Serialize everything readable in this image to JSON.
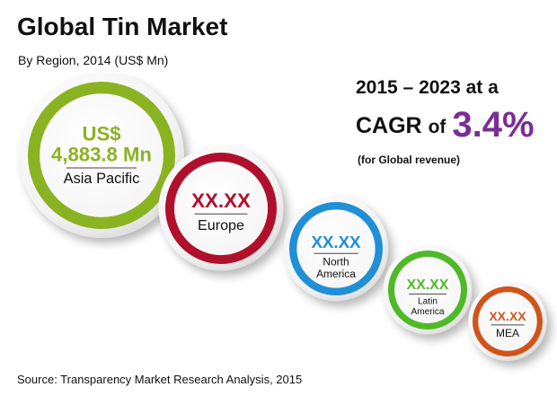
{
  "header": {
    "title": "Global Tin Market",
    "subtitle": "By Region, 2014 (US$ Mn)"
  },
  "cagr": {
    "period": "2015 – 2023 at a",
    "prefix": "CAGR",
    "of": "of",
    "value": "3.4%",
    "note": "(for Global revenue)",
    "color": "#7b2d97"
  },
  "source": "Source: Transparency Market Research Analysis, 2015",
  "chart_data": {
    "type": "bubble",
    "title": "Global Tin Market",
    "subtitle": "By Region, 2014 (US$ Mn)",
    "series": [
      {
        "region": "Asia Pacific",
        "currency": "US$",
        "value_text": "4,883.8 Mn",
        "value": 4883.8,
        "color": "#8ab322"
      },
      {
        "region": "Europe",
        "value_text": "XX.XX",
        "value": null,
        "color": "#b0102c"
      },
      {
        "region": "North America",
        "region_lines": [
          "North",
          "America"
        ],
        "value_text": "XX.XX",
        "value": null,
        "color": "#1f8fd6"
      },
      {
        "region": "Latin America",
        "region_lines": [
          "Latin",
          "America"
        ],
        "value_text": "XX.XX",
        "value": null,
        "color": "#4fb928"
      },
      {
        "region": "MEA",
        "value_text": "XX.XX",
        "value": null,
        "color": "#d0541a"
      }
    ]
  }
}
